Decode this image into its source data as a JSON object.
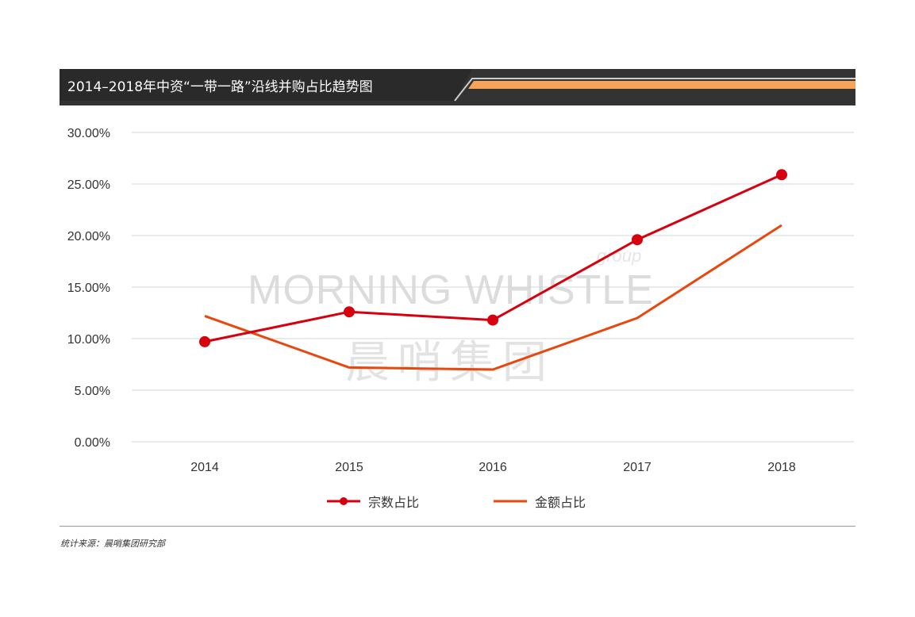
{
  "header": {
    "title": "2014–2018年中资“一带一路”沿线并购占比趋势图"
  },
  "colors": {
    "header_bg": "#333333",
    "accent_orange": "#f7a45a",
    "series_count": "#d7000f",
    "series_amount": "#e8470e",
    "grid": "#cfd8dc"
  },
  "chart_data": {
    "type": "line",
    "categories": [
      "2014",
      "2015",
      "2016",
      "2017",
      "2018"
    ],
    "series": [
      {
        "name": "宗数占比",
        "values": [
          9.7,
          12.6,
          11.8,
          19.6,
          25.9
        ],
        "markers": true
      },
      {
        "name": "金额占比",
        "values": [
          12.2,
          7.2,
          7.0,
          12.0,
          21.0
        ],
        "markers": false
      }
    ],
    "yticks": [
      "0.00%",
      "5.00%",
      "10.00%",
      "15.00%",
      "20.00%",
      "25.00%",
      "30.00%"
    ],
    "ylim": [
      0,
      30
    ],
    "grid": true,
    "legend_position": "bottom"
  },
  "legend": {
    "item1": "宗数占比",
    "item2": "金额占比"
  },
  "footer": {
    "source": "统计来源：晨哨集团研究部"
  },
  "watermark": {
    "en": "MORNING WHISTLE",
    "cn": "晨哨集团",
    "group": "group"
  }
}
